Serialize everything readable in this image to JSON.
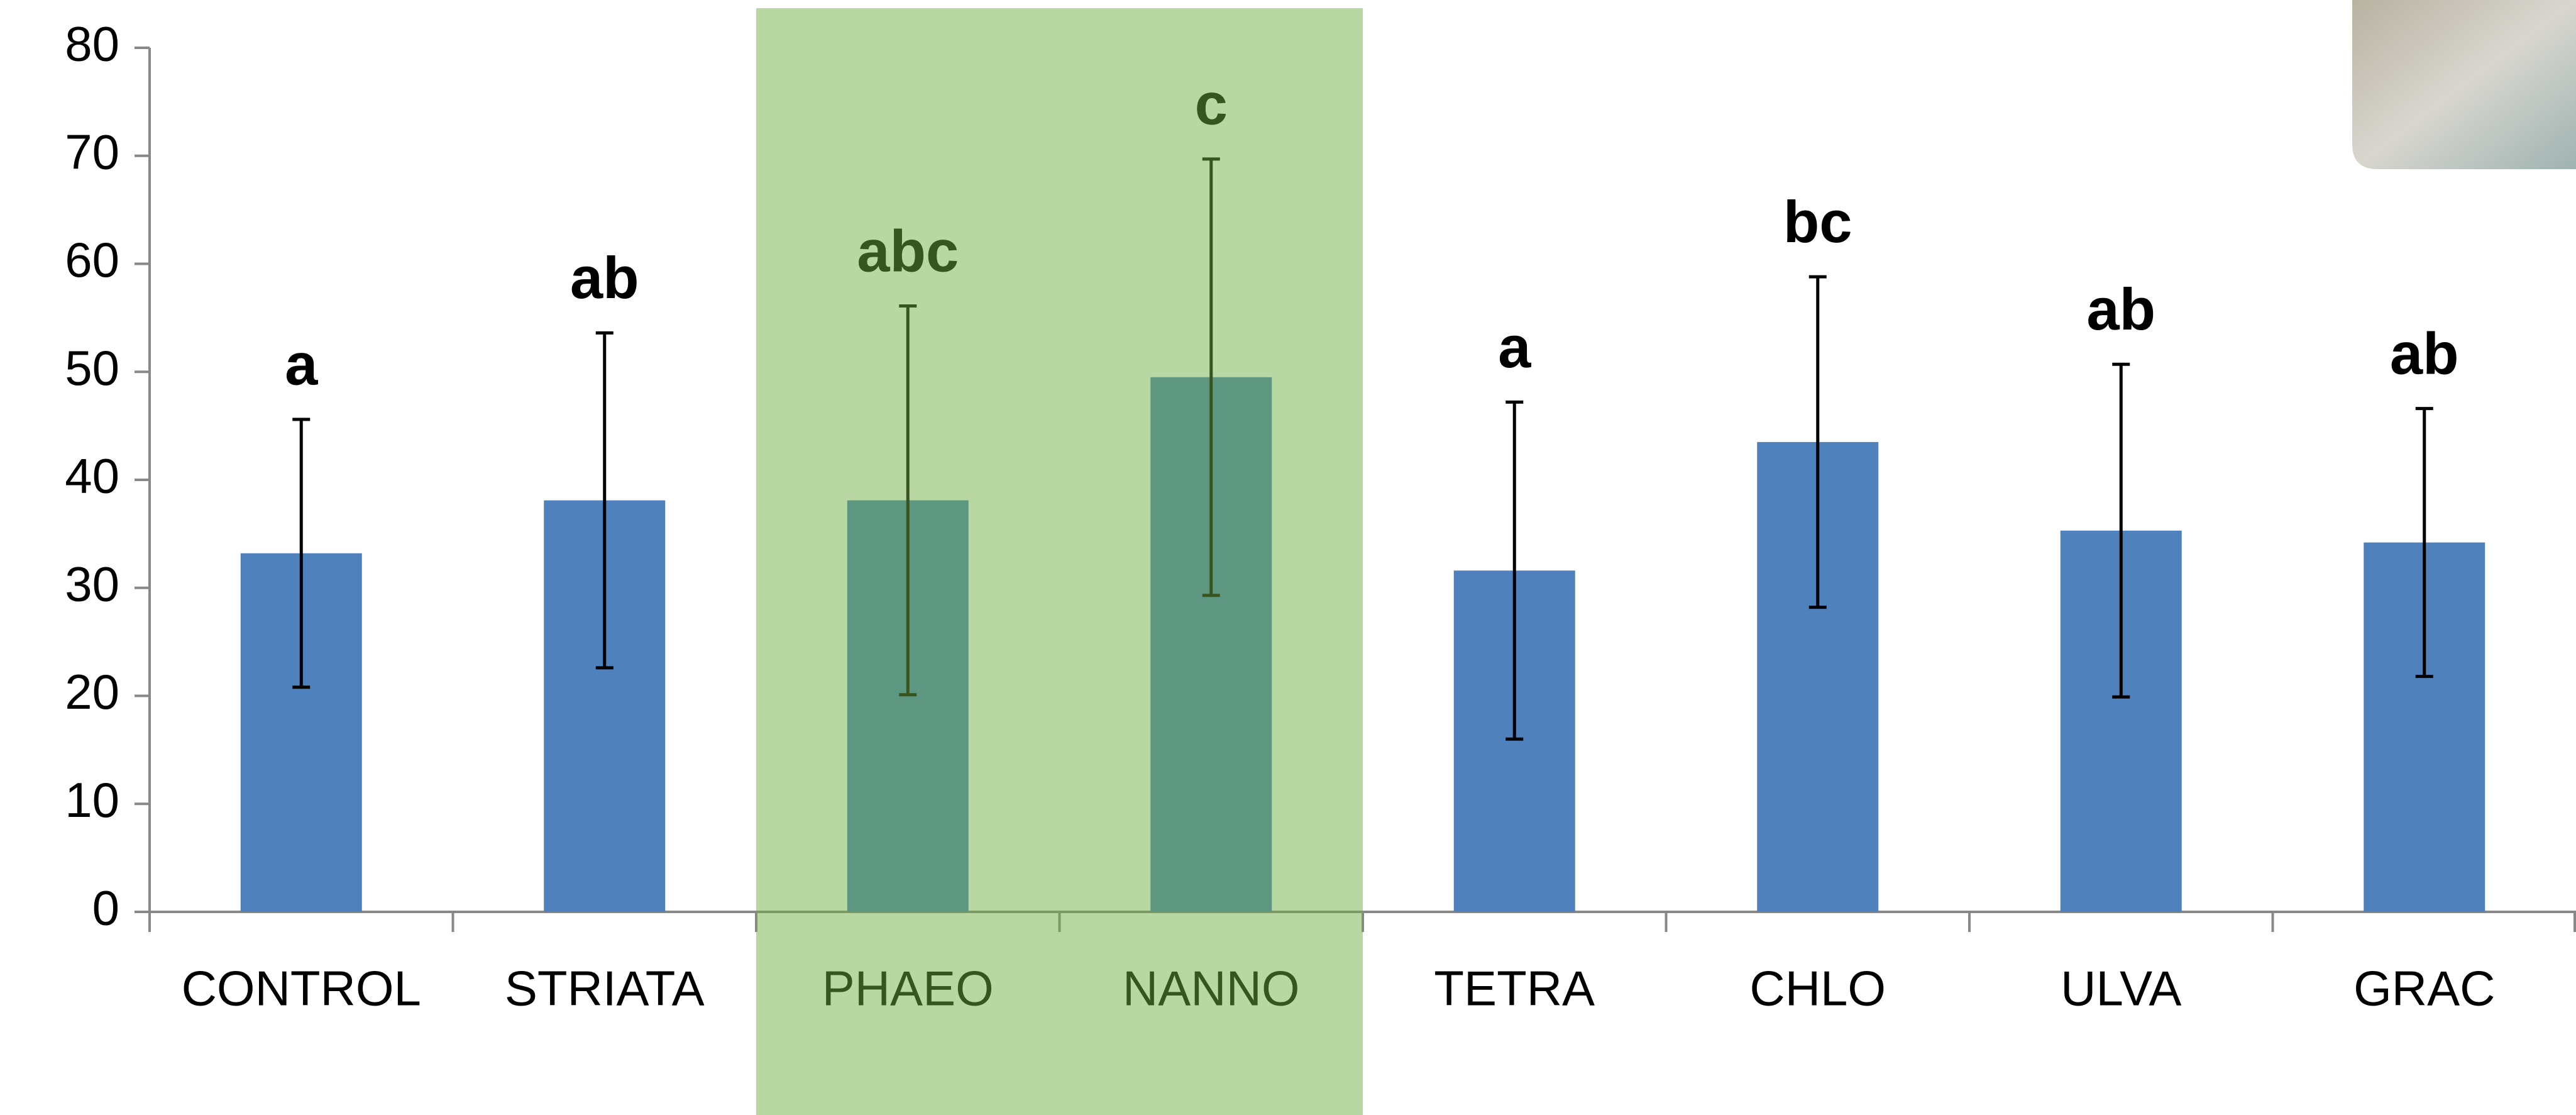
{
  "chart_data": {
    "type": "bar",
    "categories": [
      "CONTROL",
      "STRIATA",
      "PHAEO",
      "NANNO",
      "TETRA",
      "CHLO",
      "ULVA",
      "GRAC"
    ],
    "values": [
      33.2,
      38.1,
      38.1,
      49.5,
      31.6,
      43.5,
      35.3,
      34.2
    ],
    "errors": [
      12.4,
      15.5,
      18.0,
      20.2,
      15.6,
      15.3,
      15.4,
      12.4
    ],
    "annotations": [
      "a",
      "ab",
      "abc",
      "c",
      "a",
      "bc",
      "ab",
      "ab"
    ],
    "color": "#4f81bd",
    "highlight_color": "rgba(110,173,67,0.49)",
    "ylim": [
      0,
      80
    ],
    "yticks": [
      0,
      10,
      20,
      30,
      40,
      50,
      60,
      70,
      80
    ]
  }
}
